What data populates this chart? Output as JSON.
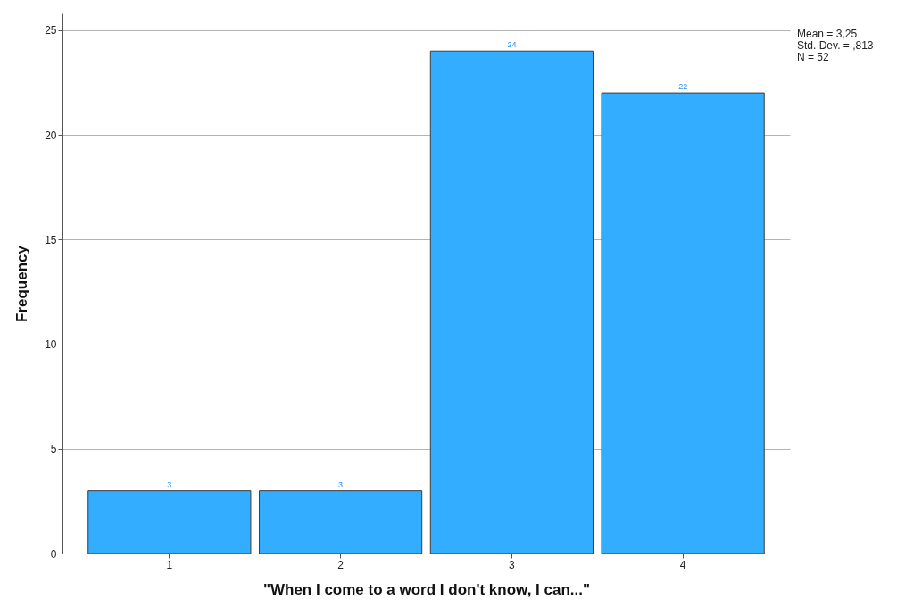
{
  "chart_data": {
    "type": "bar",
    "xlabel": "\"When I come to a word I don't know, I can...\"",
    "ylabel": "Frequency",
    "categories": [
      "1",
      "2",
      "3",
      "4"
    ],
    "values": [
      3,
      3,
      24,
      22
    ],
    "color": "#33adff",
    "ylim": [
      0,
      25.8
    ],
    "yticks": [
      0,
      5,
      10,
      15,
      20,
      25
    ],
    "grid": "y",
    "data_labels": true,
    "annotations": [
      "Mean = 3,25",
      "Std. Dev. = ,813",
      "N = 52"
    ]
  }
}
